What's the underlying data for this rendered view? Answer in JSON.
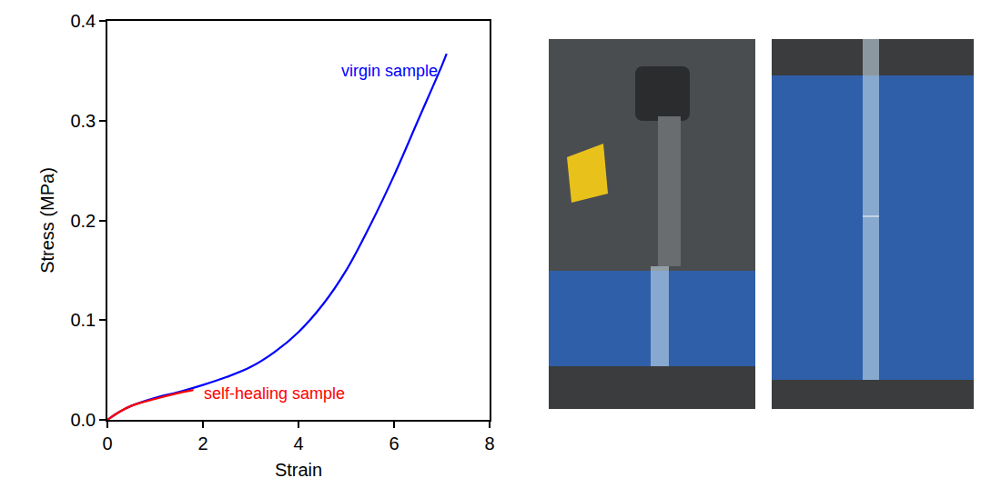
{
  "chart_data": {
    "type": "line",
    "xlabel": "Strain",
    "ylabel": "Stress (MPa)",
    "xlim": [
      0,
      8
    ],
    "ylim": [
      0,
      0.4
    ],
    "xticks": [
      0,
      2,
      4,
      6,
      8
    ],
    "yticks": [
      {
        "value": 0,
        "label": "0.0"
      },
      0.1,
      0.2,
      0.3,
      0.4
    ],
    "grid": false,
    "series": [
      {
        "name": "virgin sample",
        "color": "#0000ff",
        "x": [
          0,
          0.25,
          0.5,
          1,
          1.5,
          2,
          2.5,
          3,
          3.5,
          4,
          4.5,
          5,
          5.5,
          6,
          6.5,
          7,
          7.1
        ],
        "values": [
          0,
          0.008,
          0.014,
          0.022,
          0.028,
          0.035,
          0.043,
          0.053,
          0.068,
          0.088,
          0.115,
          0.15,
          0.195,
          0.245,
          0.3,
          0.355,
          0.367
        ]
      },
      {
        "name": "self-healing sample",
        "color": "#ff0000",
        "x": [
          0,
          0.25,
          0.5,
          1,
          1.5,
          1.8
        ],
        "values": [
          0,
          0.008,
          0.014,
          0.021,
          0.027,
          0.03
        ]
      }
    ],
    "annotations": [
      {
        "text": "virgin sample",
        "x": 5.9,
        "y": 0.35,
        "color": "#0000ff"
      },
      {
        "text": "self-healing sample",
        "x": 3.5,
        "y": 0.026,
        "color": "#ff0000"
      }
    ]
  }
}
